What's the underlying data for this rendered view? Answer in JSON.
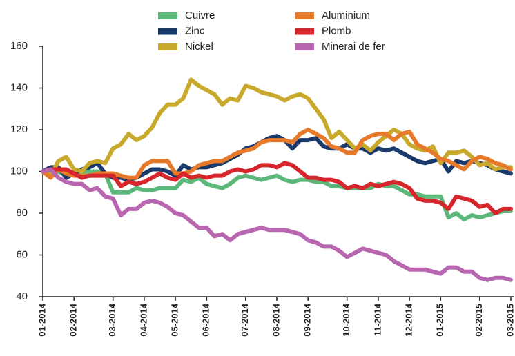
{
  "chart_data": {
    "type": "line",
    "categories": [
      "01-2014",
      null,
      null,
      null,
      "02-2014",
      null,
      null,
      null,
      null,
      "03-2014",
      null,
      null,
      null,
      "04-2014",
      null,
      null,
      null,
      "05-2014",
      null,
      null,
      null,
      "06-2014",
      null,
      null,
      null,
      null,
      "07-2014",
      null,
      null,
      null,
      "08-2014",
      null,
      null,
      null,
      "09-2014",
      null,
      null,
      null,
      null,
      "10-2014",
      null,
      null,
      null,
      "11-2014",
      null,
      null,
      null,
      "12-2014",
      null,
      null,
      null,
      "01-2015",
      null,
      null,
      null,
      null,
      "02-2015",
      null,
      null,
      null,
      "03-2015"
    ],
    "ylim": [
      40,
      160
    ],
    "yticks": [
      40,
      60,
      80,
      100,
      120,
      140,
      160
    ],
    "grid": false,
    "legend": "top",
    "series": [
      {
        "name": "Cuivre",
        "color": "#5cb87a",
        "values": [
          100,
          99,
          100,
          98,
          99,
          100,
          100,
          100,
          99,
          90,
          90,
          90,
          92,
          91,
          91,
          92,
          92,
          92,
          96,
          95,
          97,
          94,
          93,
          92,
          94,
          97,
          98,
          97,
          96,
          97,
          98,
          96,
          95,
          96,
          96,
          95,
          95,
          93,
          93,
          92,
          92,
          92,
          92,
          94,
          93,
          93,
          91,
          89,
          89,
          88,
          88,
          88,
          78,
          80,
          77,
          79,
          78,
          79,
          80,
          81,
          81
        ]
      },
      {
        "name": "Zinc",
        "color": "#1a3a6b",
        "values": [
          100,
          102,
          102,
          97,
          99,
          101,
          102,
          104,
          99,
          97,
          97,
          96,
          97,
          99,
          101,
          101,
          100,
          98,
          103,
          101,
          102,
          102,
          103,
          104,
          106,
          108,
          111,
          112,
          114,
          116,
          117,
          115,
          111,
          115,
          115,
          116,
          112,
          111,
          111,
          113,
          111,
          111,
          109,
          111,
          110,
          111,
          109,
          107,
          105,
          104,
          105,
          106,
          100,
          105,
          104,
          105,
          104,
          103,
          101,
          100,
          99
        ]
      },
      {
        "name": "Nickel",
        "color": "#c8a92c",
        "values": [
          100,
          98,
          105,
          107,
          101,
          100,
          104,
          105,
          104,
          111,
          113,
          118,
          115,
          117,
          121,
          128,
          132,
          132,
          135,
          144,
          141,
          139,
          137,
          132,
          135,
          134,
          141,
          140,
          138,
          137,
          136,
          134,
          136,
          137,
          135,
          130,
          125,
          116,
          119,
          115,
          111,
          113,
          110,
          114,
          117,
          120,
          118,
          113,
          111,
          110,
          112,
          104,
          109,
          109,
          110,
          107,
          103,
          104,
          101,
          102,
          102
        ]
      },
      {
        "name": "Aluminium",
        "color": "#e77a2a",
        "values": [
          100,
          97,
          101,
          99,
          98,
          98,
          98,
          99,
          99,
          99,
          98,
          97,
          97,
          103,
          105,
          105,
          105,
          99,
          99,
          100,
          103,
          104,
          105,
          105,
          107,
          109,
          110,
          111,
          114,
          115,
          115,
          115,
          114,
          118,
          120,
          118,
          116,
          112,
          111,
          109,
          109,
          115,
          117,
          118,
          118,
          115,
          118,
          119,
          113,
          111,
          109,
          106,
          105,
          103,
          101,
          105,
          107,
          106,
          104,
          103,
          101
        ]
      },
      {
        "name": "Plomb",
        "color": "#d7252c",
        "values": [
          100,
          101,
          101,
          101,
          99,
          97,
          98,
          98,
          98,
          98,
          93,
          95,
          94,
          95,
          97,
          99,
          97,
          96,
          99,
          97,
          98,
          97,
          98,
          98,
          100,
          101,
          100,
          101,
          103,
          103,
          102,
          104,
          103,
          100,
          97,
          97,
          96,
          96,
          95,
          92,
          93,
          92,
          94,
          93,
          94,
          95,
          94,
          92,
          87,
          86,
          86,
          85,
          82,
          88,
          87,
          86,
          83,
          84,
          80,
          82,
          82
        ]
      },
      {
        "name": "Minerai de fer",
        "color": "#b866b0",
        "values": [
          100,
          101,
          97,
          95,
          94,
          94,
          91,
          92,
          88,
          87,
          79,
          82,
          82,
          85,
          86,
          85,
          83,
          80,
          79,
          76,
          73,
          73,
          69,
          70,
          67,
          70,
          71,
          72,
          73,
          72,
          72,
          72,
          71,
          70,
          67,
          66,
          64,
          64,
          62,
          59,
          61,
          63,
          62,
          61,
          60,
          57,
          55,
          53,
          53,
          53,
          52,
          51,
          54,
          54,
          52,
          52,
          49,
          48,
          49,
          49,
          48
        ]
      }
    ]
  }
}
